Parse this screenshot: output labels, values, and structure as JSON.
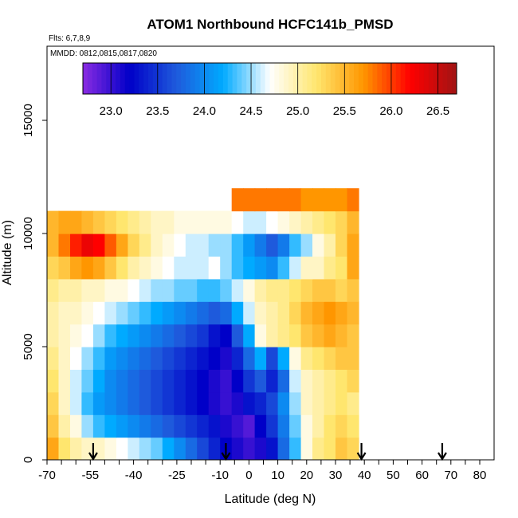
{
  "chart_data": {
    "type": "heatmap",
    "title": "ATOM1 Northbound HCFC141b_PMSD",
    "subtitle_flights": "Flts: 6,7,8,9",
    "subtitle_dates": "MMDD: 0812,0815,0817,0820",
    "xlabel": "Latitude (deg N)",
    "ylabel": "Altitude (m)",
    "xlim": [
      -70,
      85
    ],
    "ylim": [
      0,
      17500
    ],
    "x_tick_labels": [
      "-70",
      "-55",
      "-40",
      "-25",
      "-10",
      "0",
      "10",
      "20",
      "30",
      "40",
      "50",
      "60",
      "70",
      "80"
    ],
    "x_tick_values": [
      -70,
      -55,
      -40,
      -25,
      -10,
      0,
      10,
      20,
      30,
      40,
      50,
      60,
      70,
      80
    ],
    "x_minor_step": 5,
    "y_tick_labels": [
      "0",
      "5000",
      "10000",
      "15000"
    ],
    "y_tick_values": [
      0,
      5000,
      10000,
      15000
    ],
    "colorbar": {
      "min": 22.7,
      "max": 26.7,
      "tick_labels": [
        "23.0",
        "23.5",
        "24.0",
        "24.5",
        "25.0",
        "25.5",
        "26.0",
        "26.5"
      ],
      "tick_values": [
        23.0,
        23.5,
        24.0,
        24.5,
        25.0,
        25.5,
        26.0,
        26.5
      ],
      "stops": [
        "#8a2be2",
        "#0000c8",
        "#1e5adc",
        "#00aaff",
        "#ffffff",
        "#ffe66e",
        "#ff9600",
        "#ff0000",
        "#a01414"
      ]
    },
    "profile_latitudes": [
      -54,
      -8,
      39,
      67
    ],
    "heatmap": {
      "x_bins": [
        -68,
        -64,
        -60,
        -56,
        -52,
        -48,
        -44,
        -40,
        -36,
        -32,
        -28,
        -24,
        -20,
        -16,
        -12,
        -8,
        -4,
        0,
        4,
        8,
        12,
        16,
        20,
        24,
        28,
        32,
        36
      ],
      "y_bins": [
        500,
        1500,
        2500,
        3500,
        4500,
        5500,
        6500,
        7500,
        8500,
        9500,
        10500,
        11500
      ],
      "values": [
        [
          25.6,
          25.2,
          25.0,
          24.9,
          24.9,
          24.8,
          24.7,
          24.6,
          24.5,
          24.4,
          24.2,
          24.0,
          23.8,
          23.6,
          23.4,
          23.2,
          23.1,
          23.0,
          23.1,
          23.3,
          23.8,
          24.3,
          24.8,
          25.1,
          25.2,
          25.4,
          25.3
        ],
        [
          25.4,
          25.0,
          24.8,
          24.5,
          24.3,
          24.2,
          24.1,
          24.0,
          23.9,
          23.8,
          23.7,
          23.6,
          23.5,
          23.4,
          23.3,
          23.1,
          23.0,
          22.9,
          23.2,
          23.5,
          23.9,
          24.4,
          24.8,
          25.0,
          25.2,
          25.3,
          25.2
        ],
        [
          25.3,
          24.9,
          24.6,
          24.3,
          24.1,
          24.0,
          23.9,
          23.8,
          23.7,
          23.6,
          23.5,
          23.4,
          23.3,
          23.2,
          23.1,
          23.0,
          23.1,
          23.3,
          23.4,
          23.6,
          24.0,
          24.5,
          24.9,
          25.0,
          25.1,
          25.2,
          25.1
        ],
        [
          25.2,
          24.9,
          24.6,
          24.4,
          24.2,
          24.0,
          23.9,
          23.8,
          23.7,
          23.6,
          23.5,
          23.4,
          23.3,
          23.2,
          23.1,
          23.0,
          23.2,
          23.5,
          23.7,
          23.4,
          23.8,
          24.6,
          24.9,
          25.0,
          25.1,
          25.2,
          25.3
        ],
        [
          25.1,
          24.9,
          24.7,
          24.5,
          24.3,
          24.1,
          24.0,
          23.9,
          23.8,
          23.7,
          23.6,
          23.5,
          23.4,
          23.3,
          23.2,
          23.1,
          23.4,
          23.8,
          24.2,
          23.6,
          24.2,
          24.8,
          25.1,
          25.2,
          25.3,
          25.4,
          25.4
        ],
        [
          25.0,
          24.9,
          24.8,
          24.7,
          24.5,
          24.3,
          24.2,
          24.1,
          24.0,
          23.9,
          23.8,
          23.7,
          23.6,
          23.5,
          23.3,
          23.2,
          23.7,
          24.2,
          24.8,
          25.0,
          25.1,
          25.2,
          25.4,
          25.5,
          25.6,
          25.5,
          25.4
        ],
        [
          25.0,
          24.9,
          24.9,
          24.8,
          24.7,
          24.6,
          24.5,
          24.4,
          24.3,
          24.2,
          24.1,
          24.0,
          23.9,
          23.8,
          23.7,
          23.8,
          24.2,
          24.6,
          24.9,
          25.0,
          25.1,
          25.3,
          25.5,
          25.6,
          25.7,
          25.6,
          25.5
        ],
        [
          25.1,
          25.0,
          25.0,
          24.9,
          24.9,
          24.8,
          24.8,
          24.7,
          24.6,
          24.5,
          24.5,
          24.4,
          24.4,
          24.3,
          24.3,
          24.4,
          24.6,
          24.8,
          25.0,
          25.1,
          25.1,
          25.2,
          25.3,
          25.4,
          25.4,
          25.3,
          25.4
        ],
        [
          25.3,
          25.4,
          25.6,
          25.7,
          25.6,
          25.4,
          25.2,
          25.0,
          24.9,
          24.8,
          24.7,
          24.6,
          24.6,
          24.6,
          24.7,
          24.5,
          24.3,
          24.2,
          24.1,
          24.0,
          24.3,
          24.6,
          24.9,
          24.9,
          25.1,
          25.2,
          25.6
        ],
        [
          25.5,
          25.8,
          26.1,
          26.3,
          26.2,
          25.9,
          25.6,
          25.3,
          25.1,
          24.9,
          24.8,
          24.7,
          24.6,
          24.6,
          24.5,
          24.5,
          24.3,
          24.1,
          23.9,
          23.7,
          23.9,
          24.3,
          24.5,
          24.8,
          25.0,
          25.3,
          25.6
        ],
        [
          25.5,
          25.6,
          25.6,
          25.5,
          25.4,
          25.3,
          25.2,
          25.1,
          25.0,
          24.9,
          24.9,
          24.8,
          24.8,
          24.8,
          24.8,
          24.8,
          24.7,
          24.6,
          24.6,
          24.7,
          24.8,
          24.9,
          25.0,
          25.1,
          25.2,
          25.3,
          25.5
        ],
        [
          null,
          null,
          null,
          null,
          null,
          null,
          null,
          null,
          null,
          null,
          null,
          null,
          null,
          null,
          null,
          null,
          25.8,
          25.8,
          25.8,
          25.8,
          25.8,
          25.8,
          25.7,
          25.7,
          25.7,
          25.7,
          25.8
        ]
      ]
    }
  }
}
